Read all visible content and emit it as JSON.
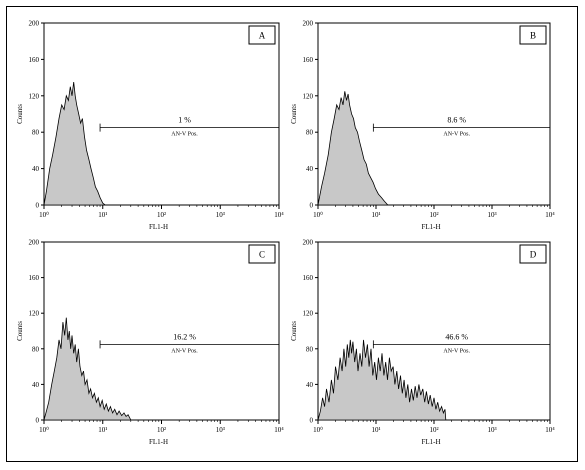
{
  "chart_data": [
    {
      "type": "area",
      "panel_label": "A",
      "xlabel": "FL1-H",
      "ylabel": "Counts",
      "xscale": "log",
      "xlim": [
        1,
        10000
      ],
      "ylim": [
        0,
        200
      ],
      "y_ticks": [
        "0",
        "40",
        "80",
        "120",
        "160",
        "200"
      ],
      "x_ticks": [
        "10⁰",
        "10¹",
        "10²",
        "10³",
        "10⁴"
      ],
      "gate": {
        "percent_label": "1 %",
        "name": "AN-V Pos.",
        "range": [
          9,
          10000
        ],
        "level": 85
      },
      "series": [
        {
          "points": [
            [
              1,
              0
            ],
            [
              1.1,
              15
            ],
            [
              1.25,
              40
            ],
            [
              1.4,
              55
            ],
            [
              1.6,
              75
            ],
            [
              1.8,
              95
            ],
            [
              2,
              110
            ],
            [
              2.2,
              105
            ],
            [
              2.4,
              120
            ],
            [
              2.6,
              115
            ],
            [
              2.8,
              130
            ],
            [
              3,
              120
            ],
            [
              3.2,
              135
            ],
            [
              3.4,
              120
            ],
            [
              3.6,
              110
            ],
            [
              3.9,
              100
            ],
            [
              4.2,
              90
            ],
            [
              4.5,
              95
            ],
            [
              4.9,
              75
            ],
            [
              5.3,
              60
            ],
            [
              5.8,
              50
            ],
            [
              6.3,
              40
            ],
            [
              6.9,
              30
            ],
            [
              7.5,
              20
            ],
            [
              8.2,
              15
            ],
            [
              9,
              8
            ],
            [
              10,
              2
            ],
            [
              11,
              0
            ]
          ]
        }
      ]
    },
    {
      "type": "area",
      "panel_label": "B",
      "xlabel": "FL1-H",
      "ylabel": "Counts",
      "xscale": "log",
      "xlim": [
        1,
        10000
      ],
      "ylim": [
        0,
        200
      ],
      "y_ticks": [
        "0",
        "40",
        "80",
        "120",
        "160",
        "200"
      ],
      "x_ticks": [
        "10⁰",
        "10¹",
        "10²",
        "10³",
        "10⁴"
      ],
      "gate": {
        "percent_label": "8.6 %",
        "name": "AN-V Pos.",
        "range": [
          9,
          10000
        ],
        "level": 85
      },
      "series": [
        {
          "points": [
            [
              1,
              0
            ],
            [
              1.15,
              20
            ],
            [
              1.3,
              35
            ],
            [
              1.5,
              55
            ],
            [
              1.7,
              80
            ],
            [
              1.9,
              95
            ],
            [
              2.1,
              110
            ],
            [
              2.3,
              105
            ],
            [
              2.5,
              118
            ],
            [
              2.7,
              110
            ],
            [
              2.9,
              125
            ],
            [
              3.1,
              115
            ],
            [
              3.3,
              122
            ],
            [
              3.5,
              110
            ],
            [
              3.8,
              100
            ],
            [
              4.1,
              95
            ],
            [
              4.4,
              85
            ],
            [
              4.8,
              80
            ],
            [
              5.2,
              70
            ],
            [
              5.7,
              60
            ],
            [
              6.2,
              50
            ],
            [
              6.8,
              45
            ],
            [
              7.4,
              35
            ],
            [
              8.1,
              30
            ],
            [
              8.9,
              25
            ],
            [
              9.8,
              18
            ],
            [
              11,
              12
            ],
            [
              12.5,
              8
            ],
            [
              14,
              4
            ],
            [
              16,
              0
            ]
          ]
        }
      ]
    },
    {
      "type": "area",
      "panel_label": "C",
      "xlabel": "FL1-H",
      "ylabel": "Counts",
      "xscale": "log",
      "xlim": [
        1,
        10000
      ],
      "ylim": [
        0,
        200
      ],
      "y_ticks": [
        "0",
        "40",
        "80",
        "120",
        "160",
        "200"
      ],
      "x_ticks": [
        "10⁰",
        "10¹",
        "10²",
        "10³",
        "10⁴"
      ],
      "gate": {
        "percent_label": "16.2 %",
        "name": "AN-V Pos.",
        "range": [
          9,
          10000
        ],
        "level": 85
      },
      "series": [
        {
          "points": [
            [
              1,
              0
            ],
            [
              1.1,
              10
            ],
            [
              1.2,
              20
            ],
            [
              1.35,
              40
            ],
            [
              1.5,
              55
            ],
            [
              1.65,
              70
            ],
            [
              1.8,
              90
            ],
            [
              1.95,
              80
            ],
            [
              2.1,
              110
            ],
            [
              2.25,
              95
            ],
            [
              2.4,
              115
            ],
            [
              2.55,
              90
            ],
            [
              2.7,
              100
            ],
            [
              2.85,
              80
            ],
            [
              3,
              95
            ],
            [
              3.2,
              75
            ],
            [
              3.4,
              85
            ],
            [
              3.6,
              65
            ],
            [
              3.85,
              80
            ],
            [
              4.1,
              60
            ],
            [
              4.4,
              50
            ],
            [
              4.7,
              55
            ],
            [
              5,
              40
            ],
            [
              5.4,
              45
            ],
            [
              5.8,
              30
            ],
            [
              6.2,
              35
            ],
            [
              6.7,
              25
            ],
            [
              7.2,
              30
            ],
            [
              7.8,
              20
            ],
            [
              8.4,
              25
            ],
            [
              9,
              15
            ],
            [
              9.8,
              22
            ],
            [
              10.6,
              12
            ],
            [
              11.5,
              18
            ],
            [
              12.5,
              10
            ],
            [
              13.5,
              15
            ],
            [
              14.7,
              8
            ],
            [
              16,
              12
            ],
            [
              17.5,
              6
            ],
            [
              19,
              10
            ],
            [
              21,
              5
            ],
            [
              23,
              8
            ],
            [
              25,
              4
            ],
            [
              27,
              6
            ],
            [
              30,
              0
            ]
          ]
        }
      ]
    },
    {
      "type": "area",
      "panel_label": "D",
      "xlabel": "FL1-H",
      "ylabel": "Counts",
      "xscale": "log",
      "xlim": [
        1,
        10000
      ],
      "ylim": [
        0,
        200
      ],
      "y_ticks": [
        "0",
        "40",
        "80",
        "120",
        "160",
        "200"
      ],
      "x_ticks": [
        "10⁰",
        "10¹",
        "10²",
        "10³",
        "10⁴"
      ],
      "gate": {
        "percent_label": "46.6 %",
        "name": "AN-V Pos.",
        "range": [
          9,
          10000
        ],
        "level": 85
      },
      "series": [
        {
          "points": [
            [
              1,
              0
            ],
            [
              1.1,
              10
            ],
            [
              1.2,
              25
            ],
            [
              1.3,
              15
            ],
            [
              1.4,
              35
            ],
            [
              1.55,
              20
            ],
            [
              1.7,
              45
            ],
            [
              1.85,
              30
            ],
            [
              2,
              60
            ],
            [
              2.2,
              45
            ],
            [
              2.4,
              70
            ],
            [
              2.6,
              55
            ],
            [
              2.8,
              80
            ],
            [
              3,
              60
            ],
            [
              3.2,
              85
            ],
            [
              3.4,
              70
            ],
            [
              3.6,
              90
            ],
            [
              3.8,
              75
            ],
            [
              4,
              88
            ],
            [
              4.3,
              65
            ],
            [
              4.6,
              80
            ],
            [
              4.9,
              55
            ],
            [
              5.3,
              75
            ],
            [
              5.7,
              60
            ],
            [
              6.1,
              90
            ],
            [
              6.6,
              70
            ],
            [
              7.1,
              85
            ],
            [
              7.6,
              60
            ],
            [
              8.2,
              80
            ],
            [
              8.8,
              50
            ],
            [
              9.5,
              65
            ],
            [
              10.2,
              45
            ],
            [
              11,
              70
            ],
            [
              11.8,
              55
            ],
            [
              12.7,
              75
            ],
            [
              13.7,
              50
            ],
            [
              14.7,
              65
            ],
            [
              15.8,
              45
            ],
            [
              17,
              70
            ],
            [
              18.3,
              55
            ],
            [
              19.7,
              60
            ],
            [
              21.2,
              40
            ],
            [
              22.8,
              55
            ],
            [
              24.5,
              35
            ],
            [
              26.4,
              50
            ],
            [
              28.4,
              30
            ],
            [
              30.5,
              45
            ],
            [
              32.8,
              25
            ],
            [
              35.3,
              40
            ],
            [
              38,
              20
            ],
            [
              41,
              35
            ],
            [
              44,
              22
            ],
            [
              47.5,
              38
            ],
            [
              51,
              25
            ],
            [
              55,
              40
            ],
            [
              59,
              28
            ],
            [
              64,
              35
            ],
            [
              69,
              20
            ],
            [
              74,
              32
            ],
            [
              80,
              18
            ],
            [
              86,
              28
            ],
            [
              93,
              15
            ],
            [
              100,
              25
            ],
            [
              108,
              12
            ],
            [
              116,
              20
            ],
            [
              125,
              10
            ],
            [
              135,
              15
            ],
            [
              145,
              8
            ],
            [
              155,
              12
            ],
            [
              160,
              0
            ]
          ]
        }
      ]
    }
  ]
}
